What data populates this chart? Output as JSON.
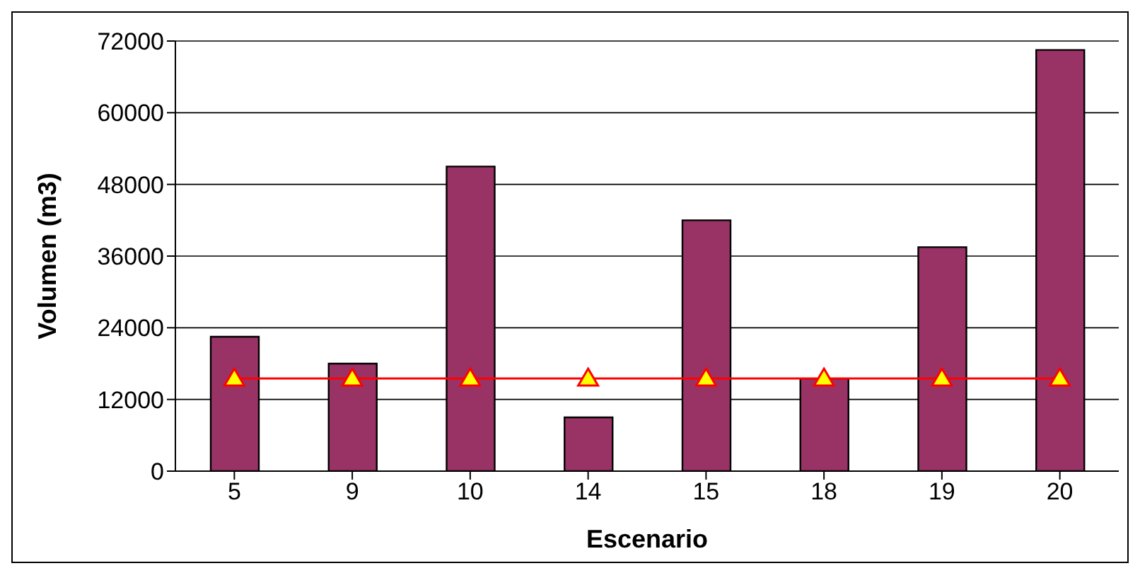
{
  "chart_data": {
    "type": "bar",
    "xlabel": "Escenario",
    "ylabel": "Volumen (m3)",
    "categories": [
      "5",
      "9",
      "10",
      "14",
      "15",
      "18",
      "19",
      "20"
    ],
    "series": [
      {
        "color": "#993366",
        "values": [
          22500,
          18000,
          51000,
          9000,
          42000,
          15500,
          37500,
          70500
        ]
      },
      {
        "type": "line",
        "color": "#ff0000",
        "marker": "triangle",
        "values": [
          15500,
          15500,
          15500,
          15500,
          15500,
          15500,
          15500,
          15500
        ]
      }
    ],
    "ylim": [
      0,
      72000
    ],
    "yticks": [
      0,
      12000,
      24000,
      36000,
      48000,
      60000,
      72000
    ],
    "grid": "y",
    "legend": false
  }
}
